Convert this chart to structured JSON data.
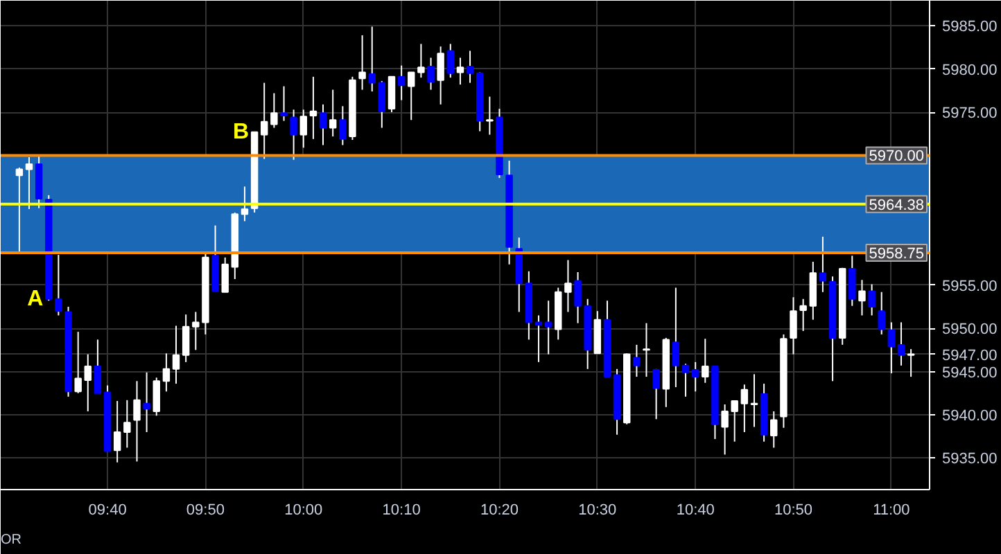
{
  "chart_data": {
    "type": "candlestick",
    "x": [
      9.5167,
      9.5333,
      9.55,
      9.5667,
      9.5833,
      9.6,
      9.6167,
      9.6333,
      9.65,
      9.6667,
      9.6833,
      9.7,
      9.7167,
      9.7333,
      9.75,
      9.7667,
      9.7833,
      9.8,
      9.8167,
      9.8333,
      9.85,
      9.8667,
      9.8833,
      9.9,
      9.9167,
      9.9333,
      9.95,
      9.9667,
      9.9833,
      10.0,
      10.0167,
      10.0333,
      10.05,
      10.0667,
      10.0833,
      10.1,
      10.1167,
      10.1333,
      10.15,
      10.1667,
      10.1833,
      10.2,
      10.2167,
      10.2333,
      10.25,
      10.2667,
      10.2833,
      10.3,
      10.3167,
      10.3333,
      10.35,
      10.3667,
      10.3833,
      10.4,
      10.4167,
      10.4333,
      10.45,
      10.4667,
      10.4833,
      10.5,
      10.5167,
      10.5333,
      10.55,
      10.5667,
      10.5833,
      10.6,
      10.6167,
      10.6333,
      10.65,
      10.6667,
      10.6833,
      10.7,
      10.7167,
      10.7333,
      10.75,
      10.7667,
      10.7833,
      10.8,
      10.8167,
      10.8333,
      10.85,
      10.8667,
      10.8833,
      10.9,
      10.9167,
      10.9333,
      10.95,
      10.9667,
      10.9833,
      11.0,
      11.0167,
      11.0333
    ],
    "ohlc": [
      [
        5967.7,
        5968.6,
        5958.75,
        5968.4
      ],
      [
        5968.4,
        5969.8,
        5963.8,
        5969.0
      ],
      [
        5969.0,
        5970.0,
        5963.9,
        5965.0
      ],
      [
        5964.9,
        5965.4,
        5953.2,
        5953.4
      ],
      [
        5953.4,
        5958.5,
        5951.5,
        5952.0
      ],
      [
        5951.9,
        5952.5,
        5942.1,
        5942.7
      ],
      [
        5942.7,
        5949.6,
        5942.5,
        5944.2
      ],
      [
        5944.0,
        5947.0,
        5940.4,
        5945.6
      ],
      [
        5945.6,
        5948.7,
        5942.5,
        5942.5
      ],
      [
        5942.6,
        5943.4,
        5935.8,
        5935.8
      ],
      [
        5935.9,
        5941.6,
        5934.5,
        5938.0
      ],
      [
        5938.0,
        5941.7,
        5936.2,
        5939.1
      ],
      [
        5939.4,
        5943.9,
        5934.6,
        5941.7
      ],
      [
        5941.3,
        5944.9,
        5938.0,
        5940.7
      ],
      [
        5940.4,
        5944.3,
        5939.9,
        5943.9
      ],
      [
        5943.9,
        5947.1,
        5942.7,
        5945.3
      ],
      [
        5945.3,
        5950.3,
        5943.6,
        5946.9
      ],
      [
        5946.9,
        5951.6,
        5946.1,
        5950.2
      ],
      [
        5950.2,
        5951.9,
        5947.5,
        5950.7
      ],
      [
        5950.7,
        5958.6,
        5949.3,
        5958.2
      ],
      [
        5958.4,
        5961.9,
        5954.3,
        5954.3
      ],
      [
        5954.2,
        5958.2,
        5954.2,
        5957.4
      ],
      [
        5957.1,
        5963.4,
        5955.7,
        5963.2
      ],
      [
        5963.2,
        5966.4,
        5962.4,
        5963.8
      ],
      [
        5963.9,
        5972.7,
        5963.4,
        5972.7
      ],
      [
        5972.4,
        5978.4,
        5969.6,
        5973.9
      ],
      [
        5973.6,
        5977.2,
        5973.2,
        5974.9
      ],
      [
        5974.9,
        5978.0,
        5974.0,
        5974.6
      ],
      [
        5974.4,
        5975.3,
        5969.5,
        5972.4
      ],
      [
        5972.4,
        5975.3,
        5970.9,
        5974.5
      ],
      [
        5974.6,
        5979.1,
        5971.9,
        5975.1
      ],
      [
        5974.9,
        5975.9,
        5971.2,
        5973.2
      ],
      [
        5973.2,
        5977.6,
        5972.2,
        5974.1
      ],
      [
        5974.1,
        5975.7,
        5971.2,
        5971.9
      ],
      [
        5972.2,
        5979.1,
        5971.8,
        5978.7
      ],
      [
        5978.9,
        5983.9,
        5977.6,
        5979.6
      ],
      [
        5979.4,
        5984.9,
        5977.4,
        5978.4
      ],
      [
        5978.4,
        5978.6,
        5973.2,
        5975.1
      ],
      [
        5975.4,
        5979.1,
        5975.0,
        5979.1
      ],
      [
        5979.1,
        5980.4,
        5976.4,
        5978.1
      ],
      [
        5978.0,
        5979.6,
        5974.1,
        5979.6
      ],
      [
        5979.6,
        5982.9,
        5979.0,
        5980.2
      ],
      [
        5980.3,
        5981.3,
        5977.6,
        5978.5
      ],
      [
        5978.7,
        5982.6,
        5975.9,
        5981.8
      ],
      [
        5982.1,
        5982.9,
        5979.0,
        5979.5
      ],
      [
        5979.6,
        5981.3,
        5978.2,
        5980.2
      ],
      [
        5980.3,
        5982.1,
        5978.4,
        5979.5
      ],
      [
        5979.5,
        5979.6,
        5972.8,
        5974.0
      ],
      [
        5974.0,
        5976.8,
        5972.4,
        5974.1
      ],
      [
        5974.4,
        5975.4,
        5967.4,
        5967.8
      ],
      [
        5967.7,
        5969.4,
        5957.4,
        5959.4
      ],
      [
        5959.2,
        5960.5,
        5951.9,
        5955.2
      ],
      [
        5955.2,
        5956.6,
        5948.7,
        5950.7
      ],
      [
        5950.7,
        5951.5,
        5946.1,
        5950.4
      ],
      [
        5950.7,
        5953.2,
        5947.0,
        5950.2
      ],
      [
        5949.9,
        5954.7,
        5948.7,
        5954.2
      ],
      [
        5954.2,
        5957.9,
        5951.9,
        5955.2
      ],
      [
        5955.5,
        5956.5,
        5950.6,
        5952.6
      ],
      [
        5952.6,
        5953.4,
        5945.3,
        5947.5
      ],
      [
        5947.1,
        5952.0,
        5947.1,
        5951.0
      ],
      [
        5951.0,
        5953.2,
        5944.4,
        5944.4
      ],
      [
        5944.6,
        5945.3,
        5937.7,
        5939.5
      ],
      [
        5939.1,
        5947.1,
        5938.9,
        5947.0
      ],
      [
        5946.6,
        5948.1,
        5944.4,
        5945.7
      ],
      [
        5947.5,
        5950.6,
        5944.4,
        5947.6
      ],
      [
        5945.2,
        5945.3,
        5939.5,
        5943.1
      ],
      [
        5943.0,
        5948.9,
        5940.9,
        5948.7
      ],
      [
        5948.4,
        5954.7,
        5943.2,
        5945.7
      ],
      [
        5945.7,
        5945.9,
        5942.1,
        5944.9
      ],
      [
        5945.2,
        5946.1,
        5942.7,
        5944.4
      ],
      [
        5944.4,
        5948.8,
        5943.7,
        5945.6
      ],
      [
        5945.6,
        5945.6,
        5937.2,
        5938.9
      ],
      [
        5938.6,
        5941.2,
        5935.4,
        5940.4
      ],
      [
        5940.4,
        5941.6,
        5936.9,
        5941.6
      ],
      [
        5941.3,
        5943.5,
        5938.0,
        5942.9
      ],
      [
        5941.2,
        5944.7,
        5938.6,
        5941.3
      ],
      [
        5942.4,
        5943.6,
        5936.9,
        5937.7
      ],
      [
        5937.6,
        5940.4,
        5936.2,
        5939.4
      ],
      [
        5939.8,
        5949.3,
        5938.5,
        5948.8
      ],
      [
        5948.9,
        5953.6,
        5947.0,
        5952.0
      ],
      [
        5952.1,
        5953.4,
        5949.7,
        5952.6
      ],
      [
        5952.6,
        5957.7,
        5951.0,
        5956.4
      ],
      [
        5956.4,
        5960.6,
        5954.2,
        5955.5
      ],
      [
        5955.4,
        5956.0,
        5943.9,
        5948.9
      ],
      [
        5948.9,
        5957.0,
        5948.1,
        5956.9
      ],
      [
        5956.9,
        5958.4,
        5952.6,
        5953.4
      ],
      [
        5953.2,
        5955.6,
        5951.5,
        5954.3
      ],
      [
        5954.3,
        5955.1,
        5951.5,
        5952.5
      ],
      [
        5952.0,
        5954.2,
        5949.3,
        5949.9
      ],
      [
        5949.8,
        5950.7,
        5944.8,
        5947.9
      ],
      [
        5948.1,
        5950.7,
        5945.7,
        5946.9
      ],
      [
        5946.9,
        5947.6,
        5944.4,
        5947.0
      ]
    ],
    "colors": [
      "#ffffff",
      "#ffffff",
      "#0000ff",
      "#0000ff",
      "#0000ff",
      "#0000ff",
      "#ffffff",
      "#ffffff",
      "#0000ff",
      "#0000ff",
      "#ffffff",
      "#ffffff",
      "#ffffff",
      "#0000ff",
      "#ffffff",
      "#ffffff",
      "#ffffff",
      "#ffffff",
      "#ffffff",
      "#ffffff",
      "#0000ff",
      "#ffffff",
      "#ffffff",
      "#ffffff",
      "#ffffff",
      "#ffffff",
      "#ffffff",
      "#0000ff",
      "#0000ff",
      "#ffffff",
      "#ffffff",
      "#0000ff",
      "#ffffff",
      "#0000ff",
      "#ffffff",
      "#ffffff",
      "#0000ff",
      "#0000ff",
      "#ffffff",
      "#0000ff",
      "#ffffff",
      "#ffffff",
      "#0000ff",
      "#ffffff",
      "#0000ff",
      "#ffffff",
      "#0000ff",
      "#0000ff",
      "#ffffff",
      "#0000ff",
      "#0000ff",
      "#0000ff",
      "#0000ff",
      "#0000ff",
      "#0000ff",
      "#ffffff",
      "#ffffff",
      "#0000ff",
      "#0000ff",
      "#ffffff",
      "#0000ff",
      "#0000ff",
      "#ffffff",
      "#0000ff",
      "#ffffff",
      "#0000ff",
      "#ffffff",
      "#0000ff",
      "#0000ff",
      "#0000ff",
      "#ffffff",
      "#0000ff",
      "#ffffff",
      "#ffffff",
      "#ffffff",
      "#ffffff",
      "#0000ff",
      "#ffffff",
      "#ffffff",
      "#ffffff",
      "#ffffff",
      "#ffffff",
      "#0000ff",
      "#0000ff",
      "#ffffff",
      "#0000ff",
      "#ffffff",
      "#0000ff",
      "#0000ff",
      "#0000ff",
      "#0000ff",
      "#ffffff"
    ],
    "xlim": [
      9.485,
      11.065
    ],
    "xticks": [
      {
        "value": 9.6667,
        "label": "09:40"
      },
      {
        "value": 9.8333,
        "label": "09:50"
      },
      {
        "value": 10.0,
        "label": "10:00"
      },
      {
        "value": 10.1667,
        "label": "10:10"
      },
      {
        "value": 10.3333,
        "label": "10:20"
      },
      {
        "value": 10.5,
        "label": "10:30"
      },
      {
        "value": 10.6667,
        "label": "10:40"
      },
      {
        "value": 10.8333,
        "label": "10:50"
      },
      {
        "value": 11.0,
        "label": "11:00"
      }
    ],
    "ylim": [
      5931.35,
      5987.9
    ],
    "yticks": [
      {
        "value": 5935,
        "label": "5935.00"
      },
      {
        "value": 5940,
        "label": "5940.00"
      },
      {
        "value": 5945,
        "label": "5945.00"
      },
      {
        "value": 5947,
        "label": "5947.00"
      },
      {
        "value": 5950,
        "label": "5950.00"
      },
      {
        "value": 5955,
        "label": "5955.00"
      },
      {
        "value": 5975,
        "label": "5975.00"
      },
      {
        "value": 5980,
        "label": "5980.00"
      },
      {
        "value": 5985,
        "label": "5985.00"
      }
    ],
    "grid": true,
    "bands": [
      {
        "axis": "y",
        "from": 5958.75,
        "to": 5970,
        "color": "#1b69b6"
      }
    ],
    "ref_lines": [
      {
        "axis": "y",
        "value": 5970,
        "label": "5970.00",
        "color": "#ff8c00"
      },
      {
        "axis": "y",
        "value": 5964.38,
        "label": "5964.38",
        "color": "#ffff00"
      },
      {
        "axis": "y",
        "value": 5958.75,
        "label": "5958.75",
        "color": "#ff8c00"
      }
    ],
    "annotations": [
      {
        "text": "A",
        "x": 9.5667,
        "y": 5953.4
      },
      {
        "text": "B",
        "x": 9.9167,
        "y": 5972.7
      },
      "OR"
    ]
  }
}
